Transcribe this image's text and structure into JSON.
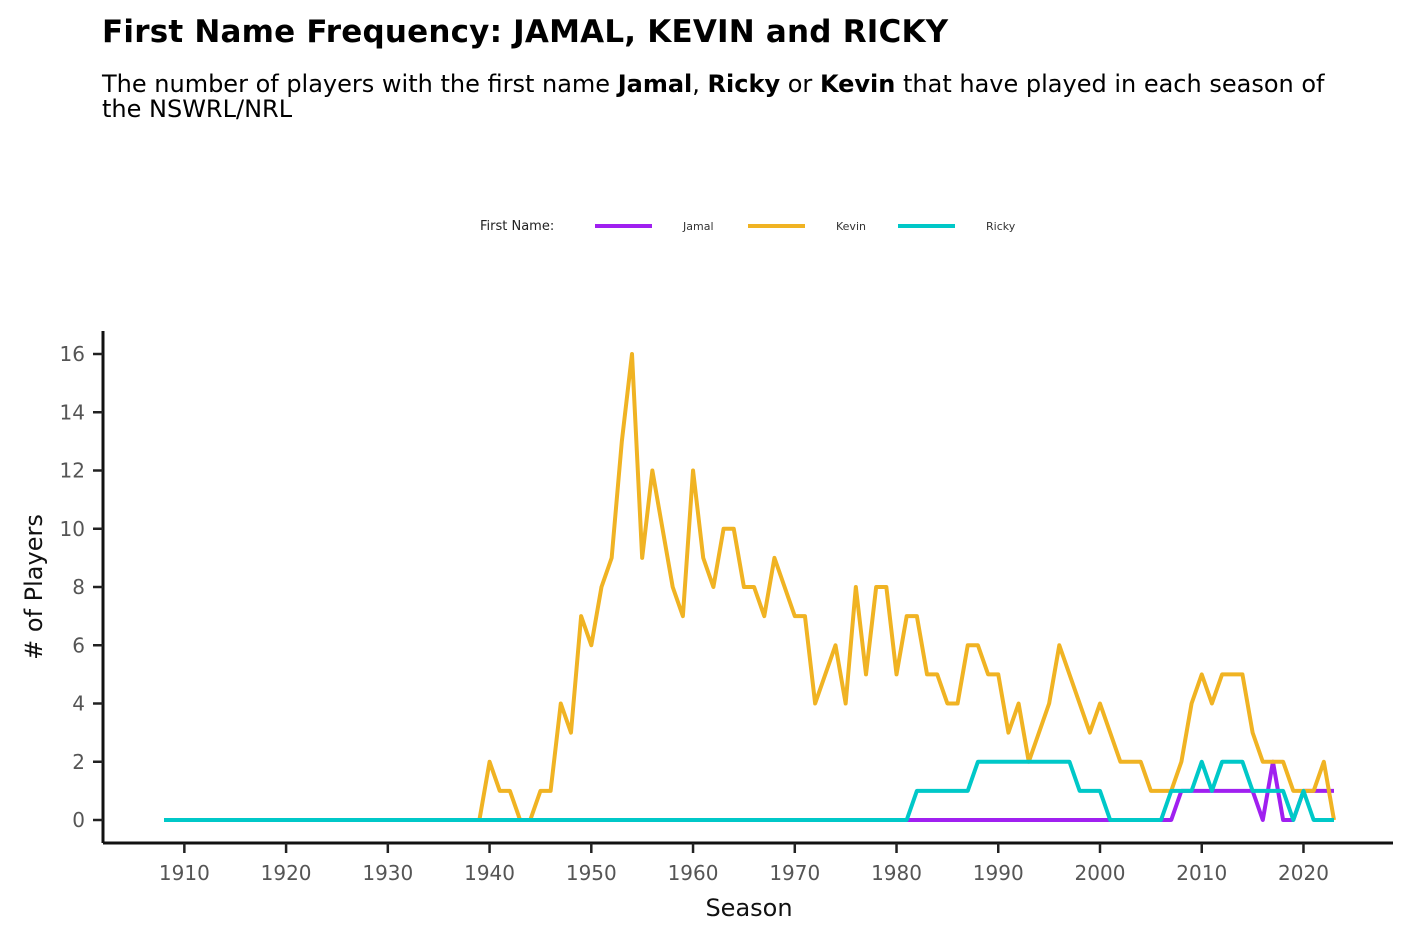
{
  "chart_data": {
    "type": "line",
    "title": "First Name Frequency: JAMAL, KEVIN and RICKY",
    "subtitle_parts": {
      "lead": "The number of players with the first name",
      "name1": "Jamal",
      "sep": ",",
      "name2": "Ricky",
      "or": "or",
      "name3": "Kevin",
      "tail": "that have played in each season of the NSWRL/NRL"
    },
    "xlabel": "Season",
    "ylabel": "# of Players",
    "xlim": [
      1908,
      2023
    ],
    "ylim": [
      0,
      16
    ],
    "x_ticks": [
      1910,
      1920,
      1930,
      1940,
      1950,
      1960,
      1970,
      1980,
      1990,
      2000,
      2010,
      2020
    ],
    "y_ticks": [
      0,
      2,
      4,
      6,
      8,
      10,
      12,
      14,
      16
    ],
    "legend": {
      "title": "First Name:",
      "position": "top"
    },
    "grid": false,
    "series": [
      {
        "name": "Jamal",
        "color": "#a020f0",
        "points": [
          [
            1908,
            0
          ],
          [
            2007,
            0
          ],
          [
            2008,
            1
          ],
          [
            2015,
            1
          ],
          [
            2016,
            0
          ],
          [
            2017,
            2
          ],
          [
            2018,
            0
          ],
          [
            2019,
            0
          ],
          [
            2020,
            1
          ],
          [
            2023,
            1
          ]
        ]
      },
      {
        "name": "Kevin",
        "color": "#f0b323",
        "points": [
          [
            1908,
            0
          ],
          [
            1939,
            0
          ],
          [
            1940,
            2
          ],
          [
            1941,
            1
          ],
          [
            1942,
            1
          ],
          [
            1943,
            0
          ],
          [
            1944,
            0
          ],
          [
            1945,
            1
          ],
          [
            1946,
            1
          ],
          [
            1947,
            4
          ],
          [
            1948,
            3
          ],
          [
            1949,
            7
          ],
          [
            1950,
            6
          ],
          [
            1951,
            8
          ],
          [
            1952,
            9
          ],
          [
            1953,
            13
          ],
          [
            1954,
            16
          ],
          [
            1955,
            9
          ],
          [
            1956,
            12
          ],
          [
            1957,
            10
          ],
          [
            1958,
            8
          ],
          [
            1959,
            7
          ],
          [
            1960,
            12
          ],
          [
            1961,
            9
          ],
          [
            1962,
            8
          ],
          [
            1963,
            10
          ],
          [
            1964,
            10
          ],
          [
            1965,
            8
          ],
          [
            1966,
            8
          ],
          [
            1967,
            7
          ],
          [
            1968,
            9
          ],
          [
            1969,
            8
          ],
          [
            1970,
            7
          ],
          [
            1971,
            7
          ],
          [
            1972,
            4
          ],
          [
            1973,
            5
          ],
          [
            1974,
            6
          ],
          [
            1975,
            4
          ],
          [
            1976,
            8
          ],
          [
            1977,
            5
          ],
          [
            1978,
            8
          ],
          [
            1979,
            8
          ],
          [
            1980,
            5
          ],
          [
            1981,
            7
          ],
          [
            1982,
            7
          ],
          [
            1983,
            5
          ],
          [
            1984,
            5
          ],
          [
            1985,
            4
          ],
          [
            1986,
            4
          ],
          [
            1987,
            6
          ],
          [
            1988,
            6
          ],
          [
            1989,
            5
          ],
          [
            1990,
            5
          ],
          [
            1991,
            3
          ],
          [
            1992,
            4
          ],
          [
            1993,
            2
          ],
          [
            1994,
            3
          ],
          [
            1995,
            4
          ],
          [
            1996,
            6
          ],
          [
            1997,
            5
          ],
          [
            1998,
            4
          ],
          [
            1999,
            3
          ],
          [
            2000,
            4
          ],
          [
            2001,
            3
          ],
          [
            2002,
            2
          ],
          [
            2003,
            2
          ],
          [
            2004,
            2
          ],
          [
            2005,
            1
          ],
          [
            2006,
            1
          ],
          [
            2007,
            1
          ],
          [
            2008,
            2
          ],
          [
            2009,
            4
          ],
          [
            2010,
            5
          ],
          [
            2011,
            4
          ],
          [
            2012,
            5
          ],
          [
            2013,
            5
          ],
          [
            2014,
            5
          ],
          [
            2015,
            3
          ],
          [
            2016,
            2
          ],
          [
            2017,
            2
          ],
          [
            2018,
            2
          ],
          [
            2019,
            1
          ],
          [
            2020,
            1
          ],
          [
            2021,
            1
          ],
          [
            2022,
            2
          ],
          [
            2023,
            0
          ]
        ]
      },
      {
        "name": "Ricky",
        "color": "#00c8c8",
        "points": [
          [
            1908,
            0
          ],
          [
            1981,
            0
          ],
          [
            1982,
            1
          ],
          [
            1987,
            1
          ],
          [
            1988,
            2
          ],
          [
            1997,
            2
          ],
          [
            1998,
            1
          ],
          [
            2000,
            1
          ],
          [
            2001,
            0
          ],
          [
            2006,
            0
          ],
          [
            2007,
            1
          ],
          [
            2009,
            1
          ],
          [
            2010,
            2
          ],
          [
            2011,
            1
          ],
          [
            2012,
            2
          ],
          [
            2014,
            2
          ],
          [
            2015,
            1
          ],
          [
            2018,
            1
          ],
          [
            2019,
            0
          ],
          [
            2020,
            1
          ],
          [
            2021,
            0
          ],
          [
            2023,
            0
          ]
        ]
      }
    ]
  }
}
